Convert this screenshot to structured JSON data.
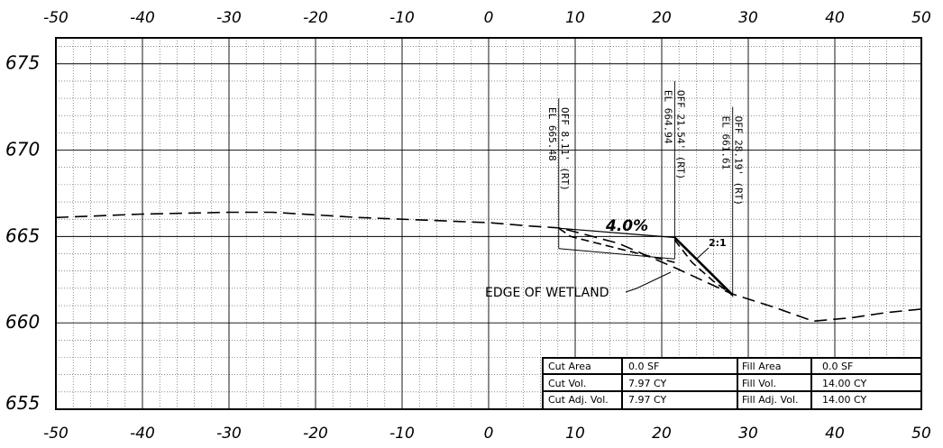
{
  "chart_data": {
    "type": "line",
    "xlim": [
      -50,
      50
    ],
    "ylim": [
      655,
      676.5
    ],
    "x_ticks": [
      -50,
      -40,
      -30,
      -20,
      -10,
      0,
      10,
      20,
      30,
      40,
      50
    ],
    "x_tick_labels": [
      "-50",
      "-40",
      "-30",
      "-20",
      "-10",
      "0",
      "10",
      "20",
      "30",
      "40",
      "50"
    ],
    "y_ticks": [
      655,
      660,
      665,
      670,
      675
    ],
    "y_tick_labels": [
      "655",
      "660",
      "665",
      "670",
      "675"
    ],
    "grid": true,
    "series": [
      {
        "style": "dashed",
        "x": [
          -50,
          -40,
          -30,
          -25,
          -15,
          -5,
          0,
          5,
          8.1,
          9,
          15,
          21.5,
          28,
          33,
          37.5,
          42,
          46,
          50
        ],
        "y": [
          666.1,
          666.3,
          666.4,
          666.4,
          666.1,
          665.9,
          665.8,
          665.6,
          665.5,
          665.4,
          664.6,
          663.2,
          661.7,
          660.9,
          660.1,
          660.3,
          660.6,
          660.8
        ]
      },
      {
        "style": "solid",
        "x": [
          8.1,
          21.5,
          28.2
        ],
        "y": [
          665.48,
          664.94,
          661.61
        ]
      },
      {
        "style": "dashed",
        "x": [
          8.1,
          9.5,
          15,
          21.5
        ],
        "y": [
          665.48,
          665.0,
          664.3,
          663.5
        ]
      },
      {
        "style": "dashed",
        "x": [
          21.5,
          23.5,
          26,
          28.2
        ],
        "y": [
          664.8,
          663.5,
          662.4,
          661.61
        ]
      }
    ],
    "callouts": [
      {
        "x": 8.1,
        "top": 673.0,
        "bottom": 664.3,
        "label1": "OFF 8.11' (RT)",
        "label2": "EL 665.48"
      },
      {
        "x": 21.5,
        "top": 674.0,
        "bottom": 663.7,
        "label1": "OFF 21.54' (RT)",
        "label2": "EL 664.94"
      },
      {
        "x": 28.2,
        "top": 672.5,
        "bottom": 661.5,
        "label1": "OFF 28.19' (RT)",
        "label2": "EL 661.61"
      }
    ],
    "annotations": {
      "grade": "4.0%",
      "slope": "2:1",
      "wetland": "EDGE OF WETLAND"
    }
  },
  "volume_table": {
    "rows": [
      [
        "Cut Area",
        "0.0 SF",
        "Fill Area",
        "0.0 SF"
      ],
      [
        "Cut Vol.",
        "7.97 CY",
        "Fill Vol.",
        "14.00 CY"
      ],
      [
        "Cut Adj. Vol.",
        "7.97 CY",
        "Fill Adj. Vol.",
        "14.00 CY"
      ]
    ]
  }
}
